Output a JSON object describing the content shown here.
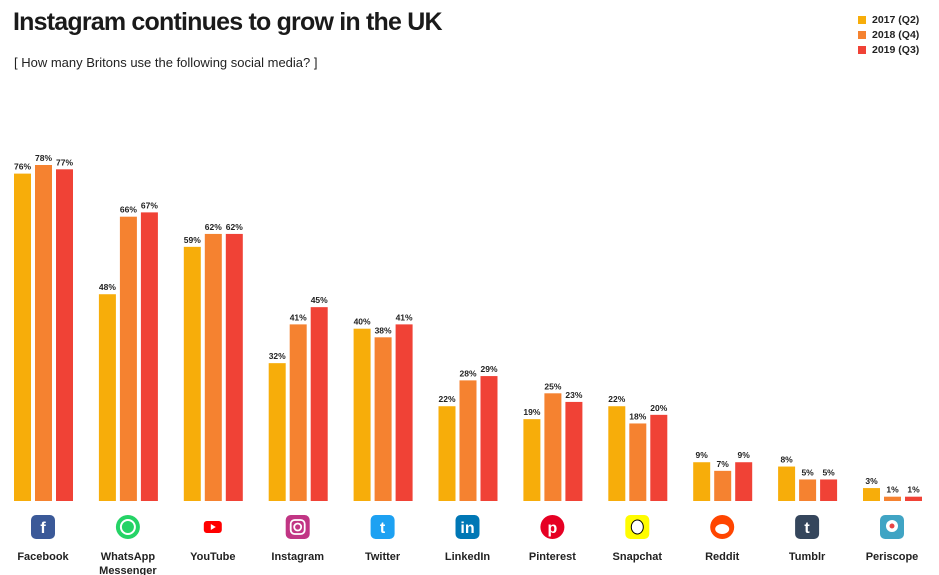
{
  "chart_data": {
    "type": "bar",
    "title": "Instagram continues to grow in the UK",
    "subtitle": "[ How many Britons use the following social media? ]",
    "categories": [
      "Facebook",
      "WhatsApp Messenger",
      "YouTube",
      "Instagram",
      "Twitter",
      "LinkedIn",
      "Pinterest",
      "Snapchat",
      "Reddit",
      "Tumblr",
      "Periscope"
    ],
    "category_lines": [
      [
        "Facebook"
      ],
      [
        "WhatsApp",
        "Messenger"
      ],
      [
        "YouTube"
      ],
      [
        "Instagram"
      ],
      [
        "Twitter"
      ],
      [
        "LinkedIn"
      ],
      [
        "Pinterest"
      ],
      [
        "Snapchat"
      ],
      [
        "Reddit"
      ],
      [
        "Tumblr"
      ],
      [
        "Periscope"
      ]
    ],
    "icons": [
      "facebook-icon",
      "whatsapp-icon",
      "youtube-icon",
      "instagram-icon",
      "twitter-icon",
      "linkedin-icon",
      "pinterest-icon",
      "snapchat-icon",
      "reddit-icon",
      "tumblr-icon",
      "periscope-icon"
    ],
    "icon_colors": [
      "#3b5998",
      "#25d366",
      "#ff0000",
      "#c13584",
      "#1da1f2",
      "#0077b5",
      "#e60023",
      "#fffc00",
      "#ff4500",
      "#35465c",
      "#40a4c4"
    ],
    "series": [
      {
        "name": "2017 (Q2)",
        "color": "#f7ad0a",
        "values": [
          76,
          48,
          59,
          32,
          40,
          22,
          19,
          22,
          9,
          8,
          3
        ]
      },
      {
        "name": "2018 (Q4)",
        "color": "#f58230",
        "values": [
          78,
          66,
          62,
          41,
          38,
          28,
          25,
          18,
          7,
          5,
          1
        ]
      },
      {
        "name": "2019 (Q3)",
        "color": "#f04236",
        "values": [
          77,
          67,
          62,
          45,
          41,
          29,
          23,
          20,
          9,
          5,
          1
        ]
      }
    ],
    "value_suffix": "%",
    "ylim": [
      0,
      80
    ],
    "grid": false,
    "legend_position": "top-right"
  }
}
